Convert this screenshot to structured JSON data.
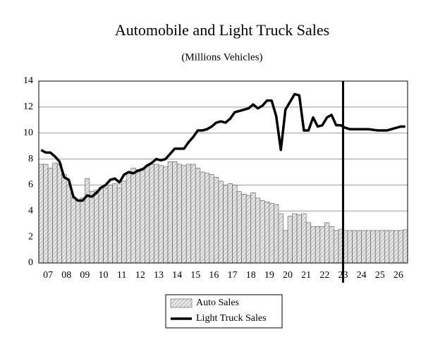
{
  "chart_data": {
    "type": "bar_line",
    "title": "Automobile and Light Truck Sales",
    "subtitle": "(Millions Vehicles)",
    "categories": [
      null,
      "07",
      null,
      null,
      null,
      "08",
      null,
      null,
      null,
      "09",
      null,
      null,
      null,
      "10",
      null,
      null,
      null,
      "11",
      null,
      null,
      null,
      "12",
      null,
      null,
      null,
      "13",
      null,
      null,
      null,
      "14",
      null,
      null,
      null,
      "15",
      null,
      null,
      null,
      "16",
      null,
      null,
      null,
      "17",
      null,
      null,
      null,
      "18",
      null,
      null,
      null,
      "19",
      null,
      null,
      null,
      "20",
      null,
      null,
      null,
      "21",
      null,
      null,
      null,
      "22",
      null,
      null,
      null,
      "23",
      null,
      null,
      null,
      "24",
      null,
      null,
      null,
      "25",
      null,
      null,
      null,
      "26",
      null,
      null
    ],
    "series": [
      {
        "name": "Auto Sales",
        "kind": "bar",
        "color": "#d9d9d9",
        "values": [
          7.6,
          7.6,
          7.3,
          7.7,
          7.6,
          6.8,
          6.0,
          5.0,
          4.8,
          5.0,
          6.5,
          5.5,
          5.6,
          5.8,
          5.8,
          6.0,
          6.1,
          5.8,
          6.3,
          6.9,
          7.3,
          7.2,
          7.3,
          7.5,
          7.6,
          7.6,
          7.5,
          7.4,
          7.8,
          7.8,
          7.6,
          7.5,
          7.6,
          7.6,
          7.3,
          7.0,
          6.9,
          6.8,
          6.6,
          6.3,
          6.0,
          6.1,
          6.0,
          5.5,
          5.3,
          5.2,
          5.4,
          5.0,
          4.8,
          4.7,
          4.6,
          4.5,
          3.8,
          2.5,
          3.6,
          3.8,
          3.7,
          3.8,
          3.1,
          2.8,
          2.8,
          2.8,
          3.1,
          2.8,
          2.5,
          2.6,
          2.5,
          2.5,
          2.5,
          2.5,
          2.5,
          2.5,
          2.5,
          2.5,
          2.5,
          2.5,
          2.5,
          2.5,
          2.5,
          2.55
        ]
      },
      {
        "name": "Light Truck Sales",
        "kind": "line",
        "color": "#000000",
        "values": [
          8.7,
          8.5,
          8.5,
          8.2,
          7.8,
          6.6,
          6.4,
          5.1,
          4.8,
          4.8,
          5.2,
          5.1,
          5.4,
          5.8,
          6.0,
          6.4,
          6.5,
          6.2,
          6.8,
          7.0,
          6.9,
          7.1,
          7.2,
          7.5,
          7.7,
          8.0,
          7.9,
          8.0,
          8.4,
          8.8,
          8.8,
          8.8,
          9.3,
          9.7,
          10.2,
          10.2,
          10.3,
          10.5,
          10.8,
          10.9,
          10.8,
          11.1,
          11.6,
          11.7,
          11.8,
          11.9,
          12.2,
          11.9,
          12.1,
          12.5,
          12.5,
          11.3,
          8.7,
          11.8,
          12.4,
          13.0,
          12.9,
          10.2,
          10.2,
          11.2,
          10.5,
          10.6,
          11.2,
          11.4,
          10.6,
          10.6,
          10.4,
          10.3,
          10.3,
          10.3,
          10.3,
          10.3,
          10.25,
          10.2,
          10.2,
          10.2,
          10.3,
          10.4,
          10.5,
          10.5
        ]
      }
    ],
    "ylim": [
      0,
      14
    ],
    "yticks": [
      0,
      2,
      4,
      6,
      8,
      10,
      12,
      14
    ],
    "grid": true,
    "legend": "bottom"
  }
}
